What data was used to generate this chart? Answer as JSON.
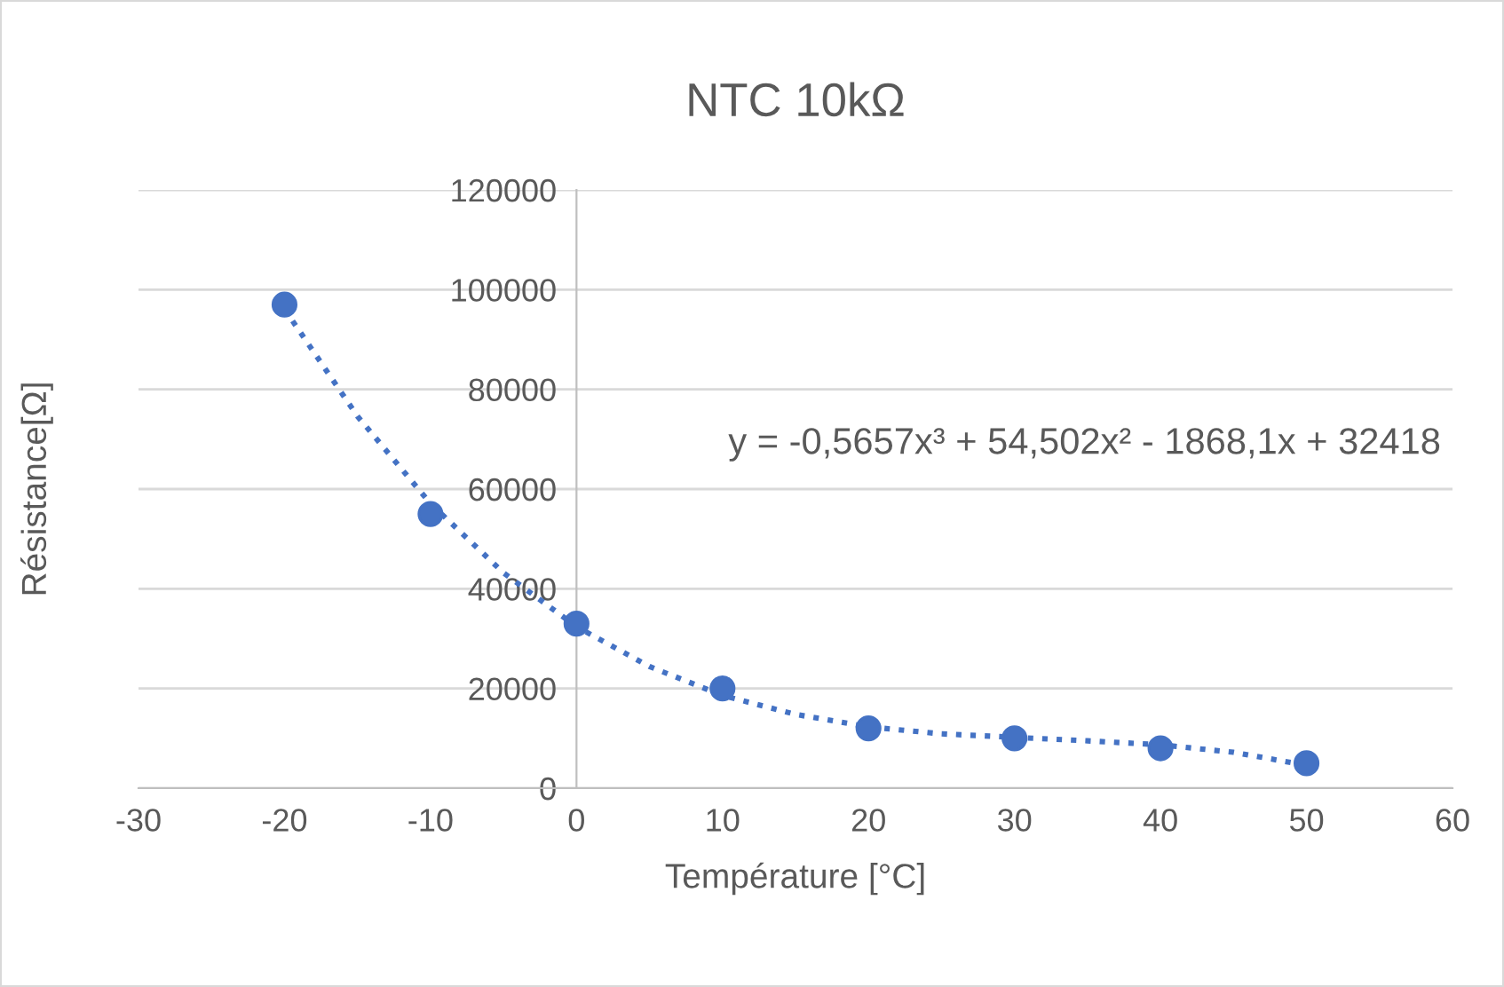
{
  "chart_data": {
    "type": "scatter",
    "title": "NTC 10kΩ",
    "xlabel": "Température [°C]",
    "ylabel": "Résistance[Ω]",
    "x": [
      -20,
      -10,
      0,
      10,
      20,
      30,
      40,
      50
    ],
    "series": [
      {
        "color": "#4472c4",
        "marker": "circle",
        "values": [
          97000,
          55000,
          33000,
          20000,
          12000,
          10000,
          8000,
          5000
        ]
      },
      {
        "type": "line",
        "color": "#4472c4",
        "line_style": "dotted",
        "marker": "none",
        "x": [
          -20,
          -15,
          -10,
          -5,
          0,
          5,
          10,
          15,
          20,
          25,
          30,
          35,
          40,
          45,
          50
        ],
        "values": [
          96100,
          74600,
          57100,
          43200,
          32400,
          24400,
          18600,
          14800,
          12300,
          10900,
          10200,
          9500,
          8700,
          7200,
          4600
        ]
      }
    ],
    "annotations": [
      "y = -0,5657x³ + 54,502x² - 1868,1x + 32418"
    ],
    "xlim": [
      -30,
      60
    ],
    "xticks": [
      -30,
      -20,
      -10,
      0,
      10,
      20,
      30,
      40,
      50,
      60
    ],
    "ylim": [
      0,
      120000
    ],
    "yticks": [
      0,
      20000,
      40000,
      60000,
      80000,
      100000,
      120000
    ],
    "grid": "y",
    "legend": false
  }
}
